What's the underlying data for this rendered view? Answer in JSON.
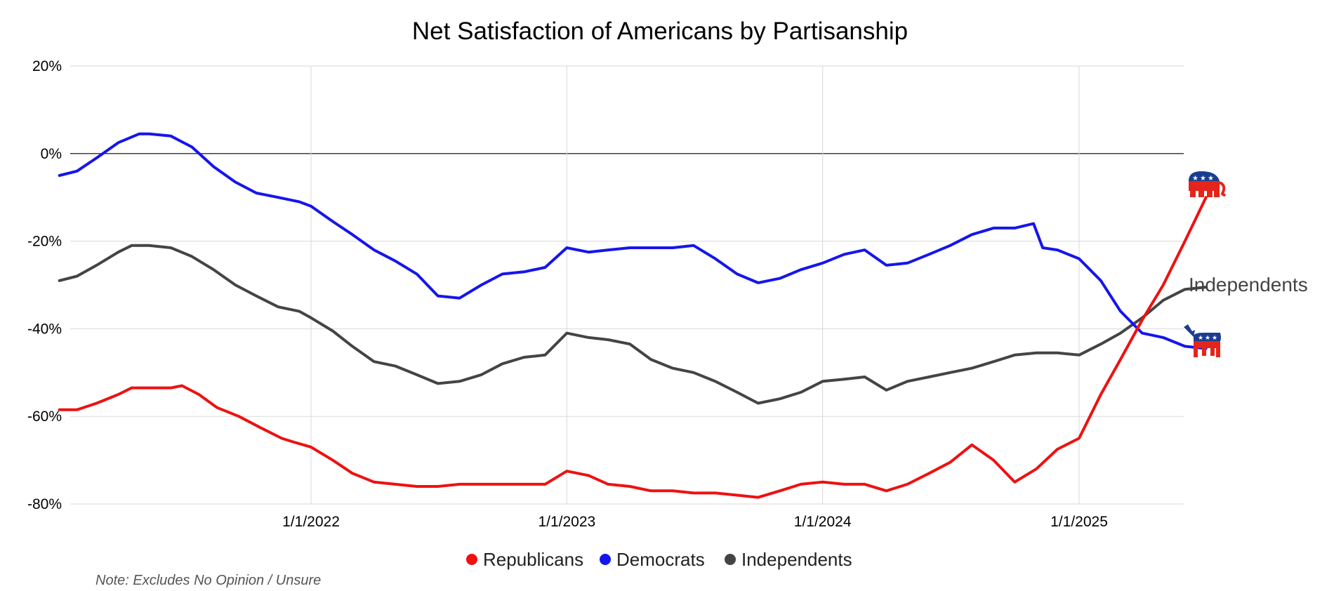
{
  "chart_data": {
    "type": "line",
    "title": "Net Satisfaction of Americans by Partisanship",
    "xlabel": "",
    "ylabel": "",
    "ylim": [
      -80,
      20
    ],
    "y_ticks": [
      "20%",
      "0%",
      "-20%",
      "-40%",
      "-60%",
      "-80%"
    ],
    "x_tick_labels": [
      "1/1/2022",
      "1/1/2023",
      "1/1/2024",
      "1/1/2025"
    ],
    "grid": true,
    "legend_position": "bottom",
    "note": "Note: Excludes No Opinion / Unsure",
    "end_label": "Independents",
    "series": [
      {
        "name": "Republicans",
        "color": "#ee1111",
        "icon": "republican-elephant-icon",
        "points": [
          [
            "2021-01-07",
            -58.5
          ],
          [
            "2021-02-01",
            -58.5
          ],
          [
            "2021-03-01",
            -57
          ],
          [
            "2021-04-01",
            -55
          ],
          [
            "2021-04-20",
            -53.5
          ],
          [
            "2021-05-15",
            -53.5
          ],
          [
            "2021-06-15",
            -53.5
          ],
          [
            "2021-07-01",
            -53
          ],
          [
            "2021-07-25",
            -55
          ],
          [
            "2021-08-20",
            -58
          ],
          [
            "2021-09-20",
            -60
          ],
          [
            "2021-10-20",
            -62.5
          ],
          [
            "2021-11-20",
            -65
          ],
          [
            "2021-12-10",
            -66
          ],
          [
            "2022-01-01",
            -67
          ],
          [
            "2022-02-01",
            -70
          ],
          [
            "2022-03-01",
            -73
          ],
          [
            "2022-04-01",
            -75
          ],
          [
            "2022-05-01",
            -75.5
          ],
          [
            "2022-06-01",
            -76
          ],
          [
            "2022-07-01",
            -76
          ],
          [
            "2022-08-01",
            -75.5
          ],
          [
            "2022-09-01",
            -75.5
          ],
          [
            "2022-10-01",
            -75.5
          ],
          [
            "2022-11-01",
            -75.5
          ],
          [
            "2022-12-01",
            -75.5
          ],
          [
            "2023-01-01",
            -72.5
          ],
          [
            "2023-02-01",
            -73.5
          ],
          [
            "2023-03-01",
            -75.5
          ],
          [
            "2023-04-01",
            -76
          ],
          [
            "2023-05-01",
            -77
          ],
          [
            "2023-06-01",
            -77
          ],
          [
            "2023-07-01",
            -77.5
          ],
          [
            "2023-08-01",
            -77.5
          ],
          [
            "2023-09-01",
            -78
          ],
          [
            "2023-10-01",
            -78.5
          ],
          [
            "2023-11-01",
            -77
          ],
          [
            "2023-12-01",
            -75.5
          ],
          [
            "2024-01-01",
            -75
          ],
          [
            "2024-02-01",
            -75.5
          ],
          [
            "2024-03-01",
            -75.5
          ],
          [
            "2024-04-01",
            -77
          ],
          [
            "2024-05-01",
            -75.5
          ],
          [
            "2024-06-01",
            -73
          ],
          [
            "2024-07-01",
            -70.5
          ],
          [
            "2024-08-01",
            -66.5
          ],
          [
            "2024-09-01",
            -70
          ],
          [
            "2024-10-01",
            -75
          ],
          [
            "2024-11-01",
            -72
          ],
          [
            "2024-12-01",
            -67.5
          ],
          [
            "2025-01-01",
            -65
          ],
          [
            "2025-02-01",
            -55
          ],
          [
            "2025-03-01",
            -47
          ],
          [
            "2025-04-01",
            -38
          ],
          [
            "2025-05-01",
            -30
          ],
          [
            "2025-06-01",
            -20
          ],
          [
            "2025-07-01",
            -10
          ]
        ]
      },
      {
        "name": "Democrats",
        "color": "#1515ee",
        "icon": "democrat-donkey-icon",
        "points": [
          [
            "2021-01-07",
            -5
          ],
          [
            "2021-02-01",
            -4
          ],
          [
            "2021-03-01",
            -1
          ],
          [
            "2021-04-01",
            2.5
          ],
          [
            "2021-05-01",
            4.5
          ],
          [
            "2021-05-15",
            4.5
          ],
          [
            "2021-06-15",
            4
          ],
          [
            "2021-07-15",
            1.5
          ],
          [
            "2021-08-15",
            -3
          ],
          [
            "2021-09-15",
            -6.5
          ],
          [
            "2021-10-15",
            -9
          ],
          [
            "2021-11-15",
            -10
          ],
          [
            "2021-12-15",
            -11
          ],
          [
            "2022-01-01",
            -12
          ],
          [
            "2022-02-01",
            -15.5
          ],
          [
            "2022-03-01",
            -18.5
          ],
          [
            "2022-04-01",
            -22
          ],
          [
            "2022-05-01",
            -24.5
          ],
          [
            "2022-06-01",
            -27.5
          ],
          [
            "2022-07-01",
            -32.5
          ],
          [
            "2022-08-01",
            -33
          ],
          [
            "2022-09-01",
            -30
          ],
          [
            "2022-10-01",
            -27.5
          ],
          [
            "2022-11-01",
            -27
          ],
          [
            "2022-12-01",
            -26
          ],
          [
            "2023-01-01",
            -21.5
          ],
          [
            "2023-02-01",
            -22.5
          ],
          [
            "2023-03-01",
            -22
          ],
          [
            "2023-04-01",
            -21.5
          ],
          [
            "2023-05-01",
            -21.5
          ],
          [
            "2023-06-01",
            -21.5
          ],
          [
            "2023-07-01",
            -21
          ],
          [
            "2023-08-01",
            -24
          ],
          [
            "2023-09-01",
            -27.5
          ],
          [
            "2023-10-01",
            -29.5
          ],
          [
            "2023-11-01",
            -28.5
          ],
          [
            "2023-12-01",
            -26.5
          ],
          [
            "2024-01-01",
            -25
          ],
          [
            "2024-02-01",
            -23
          ],
          [
            "2024-03-01",
            -22
          ],
          [
            "2024-04-01",
            -25.5
          ],
          [
            "2024-05-01",
            -25
          ],
          [
            "2024-06-01",
            -23
          ],
          [
            "2024-07-01",
            -21
          ],
          [
            "2024-08-01",
            -18.5
          ],
          [
            "2024-09-01",
            -17
          ],
          [
            "2024-10-01",
            -17
          ],
          [
            "2024-10-28",
            -16
          ],
          [
            "2024-11-10",
            -21.5
          ],
          [
            "2024-12-01",
            -22
          ],
          [
            "2025-01-01",
            -24
          ],
          [
            "2025-02-01",
            -29
          ],
          [
            "2025-03-01",
            -36
          ],
          [
            "2025-04-01",
            -41
          ],
          [
            "2025-05-01",
            -42
          ],
          [
            "2025-06-01",
            -44
          ],
          [
            "2025-07-01",
            -44.5
          ]
        ]
      },
      {
        "name": "Independents",
        "color": "#444444",
        "icon": "",
        "points": [
          [
            "2021-01-07",
            -29
          ],
          [
            "2021-02-01",
            -28
          ],
          [
            "2021-03-01",
            -25.5
          ],
          [
            "2021-04-01",
            -22.5
          ],
          [
            "2021-04-20",
            -21
          ],
          [
            "2021-05-15",
            -21
          ],
          [
            "2021-06-15",
            -21.5
          ],
          [
            "2021-07-15",
            -23.5
          ],
          [
            "2021-08-15",
            -26.5
          ],
          [
            "2021-09-15",
            -30
          ],
          [
            "2021-10-15",
            -32.5
          ],
          [
            "2021-11-15",
            -35
          ],
          [
            "2021-12-15",
            -36
          ],
          [
            "2022-01-01",
            -37.5
          ],
          [
            "2022-02-01",
            -40.5
          ],
          [
            "2022-03-01",
            -44
          ],
          [
            "2022-04-01",
            -47.5
          ],
          [
            "2022-05-01",
            -48.5
          ],
          [
            "2022-06-01",
            -50.5
          ],
          [
            "2022-07-01",
            -52.5
          ],
          [
            "2022-08-01",
            -52
          ],
          [
            "2022-09-01",
            -50.5
          ],
          [
            "2022-10-01",
            -48
          ],
          [
            "2022-11-01",
            -46.5
          ],
          [
            "2022-12-01",
            -46
          ],
          [
            "2023-01-01",
            -41
          ],
          [
            "2023-02-01",
            -42
          ],
          [
            "2023-03-01",
            -42.5
          ],
          [
            "2023-04-01",
            -43.5
          ],
          [
            "2023-05-01",
            -47
          ],
          [
            "2023-06-01",
            -49
          ],
          [
            "2023-07-01",
            -50
          ],
          [
            "2023-08-01",
            -52
          ],
          [
            "2023-09-01",
            -54.5
          ],
          [
            "2023-10-01",
            -57
          ],
          [
            "2023-11-01",
            -56
          ],
          [
            "2023-12-01",
            -54.5
          ],
          [
            "2024-01-01",
            -52
          ],
          [
            "2024-02-01",
            -51.5
          ],
          [
            "2024-03-01",
            -51
          ],
          [
            "2024-04-01",
            -54
          ],
          [
            "2024-05-01",
            -52
          ],
          [
            "2024-06-01",
            -51
          ],
          [
            "2024-07-01",
            -50
          ],
          [
            "2024-08-01",
            -49
          ],
          [
            "2024-09-01",
            -47.5
          ],
          [
            "2024-10-01",
            -46
          ],
          [
            "2024-11-01",
            -45.5
          ],
          [
            "2024-12-01",
            -45.5
          ],
          [
            "2025-01-01",
            -46
          ],
          [
            "2025-02-01",
            -43.5
          ],
          [
            "2025-03-01",
            -41
          ],
          [
            "2025-04-01",
            -37.5
          ],
          [
            "2025-05-01",
            -33.5
          ],
          [
            "2025-06-01",
            -31
          ],
          [
            "2025-07-01",
            -30.5
          ]
        ]
      }
    ]
  }
}
